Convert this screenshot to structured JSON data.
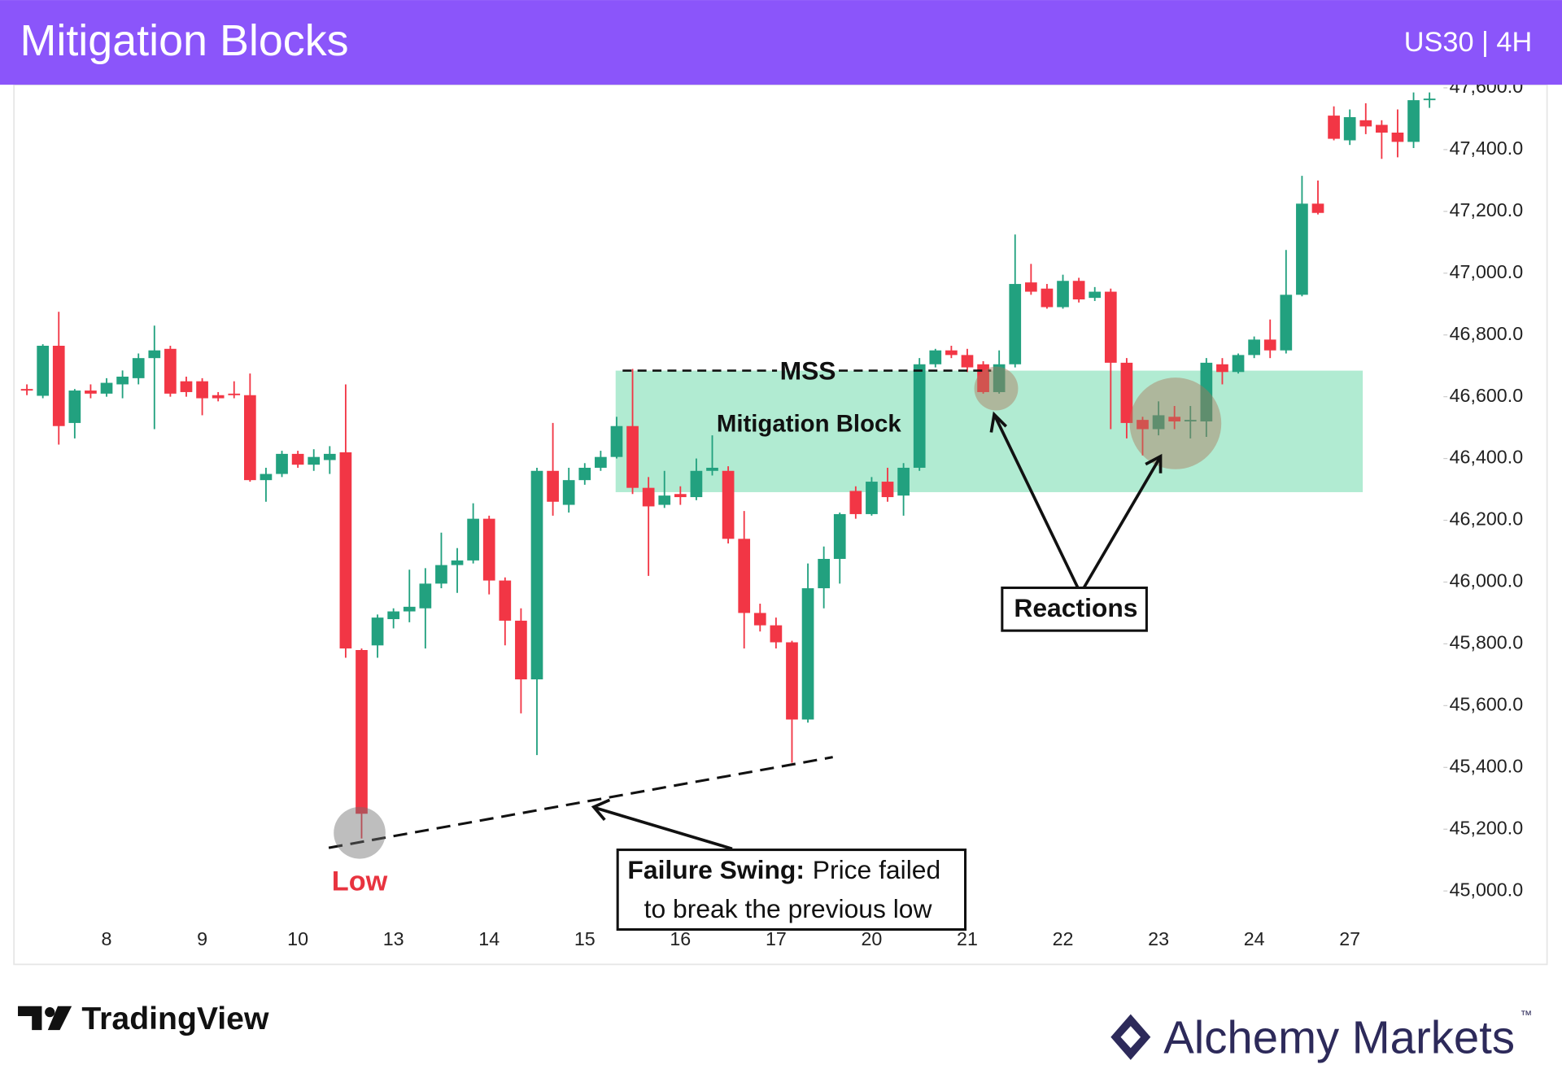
{
  "chart_data": {
    "type": "candlestick",
    "title": "Mitigation Blocks",
    "subtitle": "US30 | 4H",
    "categories": [
      null,
      null,
      null,
      null,
      null,
      "8",
      null,
      null,
      null,
      null,
      null,
      "9",
      null,
      null,
      null,
      null,
      null,
      "10",
      null,
      null,
      null,
      null,
      null,
      "13",
      null,
      null,
      null,
      null,
      null,
      "14",
      null,
      null,
      null,
      null,
      null,
      "15",
      null,
      null,
      null,
      null,
      null,
      "16",
      null,
      null,
      null,
      null,
      null,
      "17",
      null,
      null,
      null,
      null,
      null,
      "20",
      null,
      null,
      null,
      null,
      null,
      "21",
      null,
      null,
      null,
      null,
      null,
      "22",
      null,
      null,
      null,
      null,
      null,
      "23",
      null,
      null,
      null,
      null,
      null,
      "24",
      null,
      null,
      null,
      null,
      null,
      "27",
      null,
      null,
      null,
      null,
      null
    ],
    "open": [
      46625,
      46603,
      46765,
      46515,
      46620,
      46610,
      46640,
      46660,
      46725,
      46755,
      46650,
      46650,
      46605,
      46610,
      46605,
      46330,
      46350,
      46415,
      46380,
      46395,
      46420,
      45780,
      45795,
      45880,
      45905,
      45915,
      45995,
      46055,
      46070,
      46205,
      46005,
      45875,
      45685,
      46360,
      46250,
      46330,
      46370,
      46405,
      46505,
      46305,
      46250,
      46285,
      46275,
      46360,
      46360,
      46140,
      45900,
      45860,
      45805,
      45555,
      45980,
      46075,
      46295,
      46220,
      46325,
      46280,
      46370,
      46705,
      46750,
      46735,
      46705,
      46615,
      46705,
      46970,
      46950,
      46890,
      46975,
      46920,
      46940,
      46710,
      46525,
      46495,
      46535,
      46520,
      46520,
      46705,
      46680,
      46735,
      46785,
      46750,
      46930,
      47225,
      47510,
      47430,
      47495,
      47480,
      47455,
      47425,
      47560
    ],
    "high": [
      46640,
      46770,
      46875,
      46625,
      46640,
      46660,
      46685,
      46740,
      46830,
      46765,
      46665,
      46660,
      46615,
      46650,
      46675,
      46370,
      46425,
      46425,
      46430,
      46440,
      46640,
      45785,
      45895,
      45915,
      46040,
      46045,
      46160,
      46110,
      46255,
      46215,
      46015,
      45915,
      46370,
      46515,
      46370,
      46385,
      46425,
      46535,
      46690,
      46340,
      46360,
      46310,
      46400,
      46475,
      46375,
      46230,
      45930,
      45885,
      45810,
      46060,
      46115,
      46225,
      46310,
      46340,
      46370,
      46385,
      46725,
      46755,
      46765,
      46755,
      46715,
      46750,
      47125,
      47030,
      46965,
      46995,
      46985,
      46955,
      46950,
      46725,
      46535,
      46585,
      46570,
      46570,
      46725,
      46725,
      46740,
      46795,
      46850,
      47075,
      47315,
      47300,
      47540,
      47530,
      47550,
      47495,
      47530,
      47585,
      47585
    ],
    "low": [
      46605,
      46595,
      46445,
      46465,
      46595,
      46600,
      46595,
      46640,
      46495,
      46600,
      46600,
      46540,
      46585,
      46595,
      46325,
      46260,
      46340,
      46370,
      46360,
      46350,
      45755,
      45170,
      45755,
      45850,
      45870,
      45785,
      45980,
      45965,
      46060,
      45960,
      45795,
      45575,
      45440,
      46215,
      46225,
      46315,
      46360,
      46400,
      46285,
      46020,
      46240,
      46250,
      46265,
      46345,
      46125,
      45785,
      45840,
      45785,
      45415,
      45545,
      45915,
      45995,
      46205,
      46215,
      46260,
      46215,
      46360,
      46695,
      46725,
      46680,
      46610,
      46610,
      46695,
      46930,
      46885,
      46885,
      46905,
      46910,
      46495,
      46465,
      46410,
      46475,
      46495,
      46465,
      46470,
      46640,
      46675,
      46725,
      46725,
      46740,
      46925,
      47190,
      47430,
      47415,
      47450,
      47370,
      47375,
      47405,
      47535
    ],
    "close": [
      46620,
      46765,
      46505,
      46620,
      46610,
      46645,
      46665,
      46725,
      46750,
      46610,
      46615,
      46595,
      46595,
      46605,
      46330,
      46350,
      46415,
      46380,
      46405,
      46415,
      45785,
      45250,
      45885,
      45905,
      45920,
      45995,
      46055,
      46070,
      46205,
      46005,
      45875,
      45685,
      46360,
      46260,
      46330,
      46370,
      46405,
      46505,
      46305,
      46245,
      46280,
      46275,
      46360,
      46370,
      46140,
      45900,
      45860,
      45805,
      45555,
      45980,
      46075,
      46220,
      46220,
      46325,
      46275,
      46370,
      46705,
      46750,
      46735,
      46695,
      46615,
      46705,
      46965,
      46940,
      46890,
      46975,
      46915,
      46940,
      46710,
      46515,
      46495,
      46540,
      46520,
      46525,
      46710,
      46680,
      46735,
      46785,
      46750,
      46930,
      47225,
      47195,
      47435,
      47505,
      47475,
      47455,
      47425,
      47560,
      47565
    ],
    "up_color": "#22a17f",
    "down_color": "#f23645",
    "ylim": [
      44885,
      47610
    ],
    "yticks": [
      {
        "value": 45000,
        "label": "45,000.0"
      },
      {
        "value": 45200,
        "label": "45,200.0"
      },
      {
        "value": 45400,
        "label": "45,400.0"
      },
      {
        "value": 45600,
        "label": "45,600.0"
      },
      {
        "value": 45800,
        "label": "45,800.0"
      },
      {
        "value": 46000,
        "label": "46,000.0"
      },
      {
        "value": 46200,
        "label": "46,200.0"
      },
      {
        "value": 46400,
        "label": "46,400.0"
      },
      {
        "value": 46600,
        "label": "46,600.0"
      },
      {
        "value": 46800,
        "label": "46,800.0"
      },
      {
        "value": 47000,
        "label": "47,000.0"
      },
      {
        "value": 47200,
        "label": "47,200.0"
      },
      {
        "value": 47400,
        "label": "47,400.0"
      },
      {
        "value": 47600,
        "label": "47,600.0"
      }
    ],
    "grid": false,
    "annotations": {
      "mss": "MSS",
      "zone": "Mitigation Block",
      "reactions": "Reactions",
      "failure_title": "Failure Swing:",
      "failure_text_1": "Price failed",
      "failure_text_2": "to break the previous low",
      "low": "Low"
    }
  },
  "branding": {
    "tradingview": "TradingView",
    "alchemy": "Alchemy Markets",
    "trademark": "™"
  }
}
